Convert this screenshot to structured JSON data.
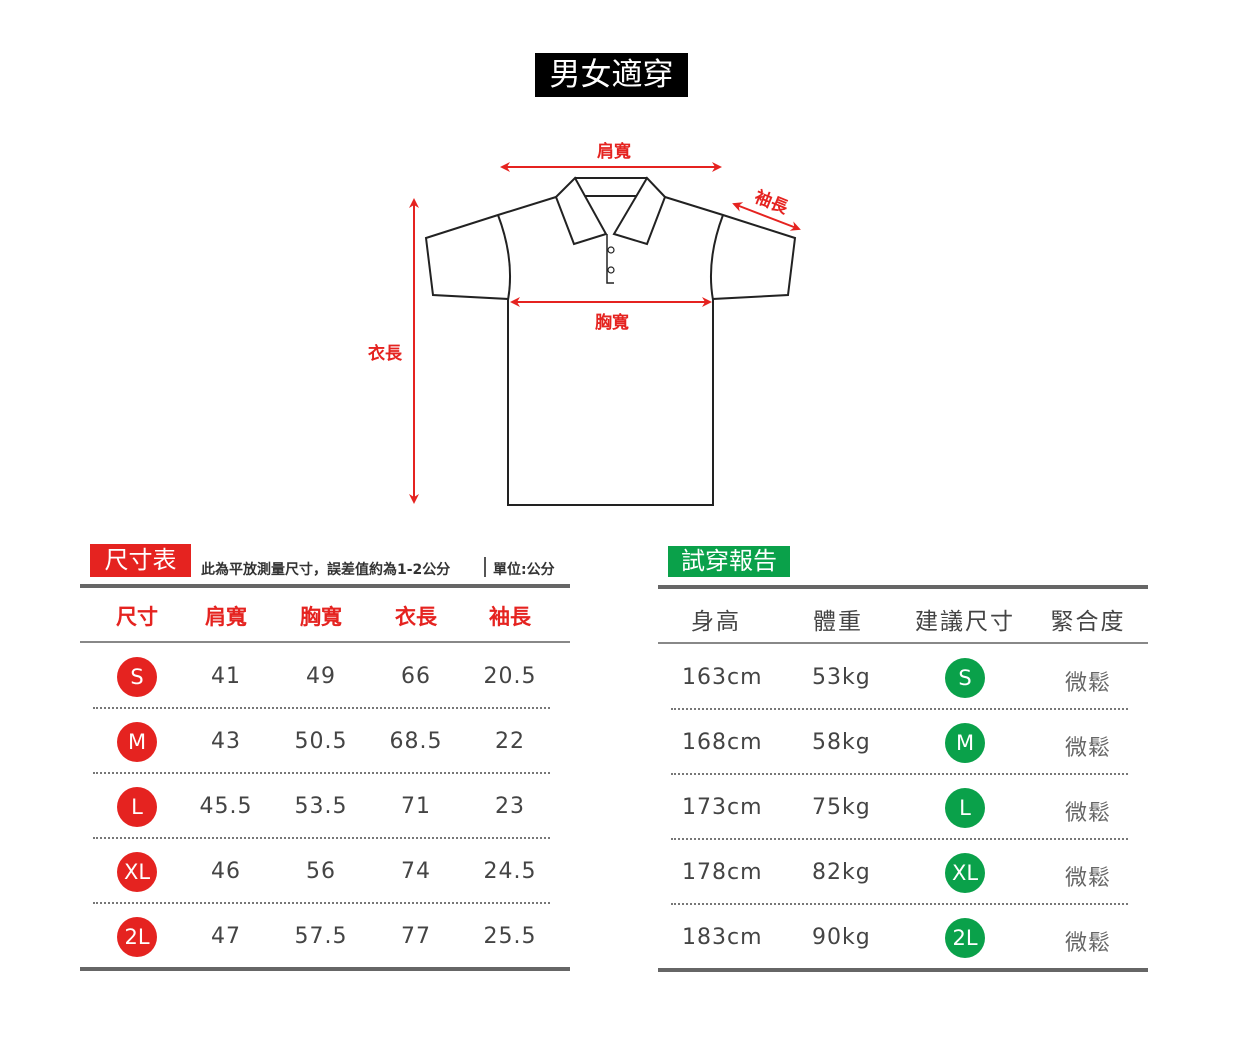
{
  "title": "男女適穿",
  "diagram": {
    "shoulder_label": "肩寬",
    "sleeve_label": "袖長",
    "chest_label": "胸寬",
    "length_label": "衣長"
  },
  "size_table": {
    "tag": "尺寸表",
    "note": "此為平放測量尺寸，誤差值約為1-2公分",
    "unit": "單位:公分",
    "headers": [
      "尺寸",
      "肩寬",
      "胸寬",
      "衣長",
      "袖長"
    ],
    "rows": [
      {
        "size": "S",
        "values": [
          "41",
          "49",
          "66",
          "20.5"
        ]
      },
      {
        "size": "M",
        "values": [
          "43",
          "50.5",
          "68.5",
          "22"
        ]
      },
      {
        "size": "L",
        "values": [
          "45.5",
          "53.5",
          "71",
          "23"
        ]
      },
      {
        "size": "XL",
        "values": [
          "46",
          "56",
          "74",
          "24.5"
        ]
      },
      {
        "size": "2L",
        "values": [
          "47",
          "57.5",
          "77",
          "25.5"
        ]
      }
    ]
  },
  "fit_report": {
    "tag": "試穿報告",
    "headers": [
      "身高",
      "體重",
      "建議尺寸",
      "緊合度"
    ],
    "rows": [
      {
        "height": "163cm",
        "weight": "53kg",
        "size": "S",
        "fit": "微鬆"
      },
      {
        "height": "168cm",
        "weight": "58kg",
        "size": "M",
        "fit": "微鬆"
      },
      {
        "height": "173cm",
        "weight": "75kg",
        "size": "L",
        "fit": "微鬆"
      },
      {
        "height": "178cm",
        "weight": "82kg",
        "size": "XL",
        "fit": "微鬆"
      },
      {
        "height": "183cm",
        "weight": "90kg",
        "size": "2L",
        "fit": "微鬆"
      }
    ]
  },
  "colors": {
    "red": "#e52320",
    "green": "#0aa14a",
    "rule": "#666666"
  }
}
